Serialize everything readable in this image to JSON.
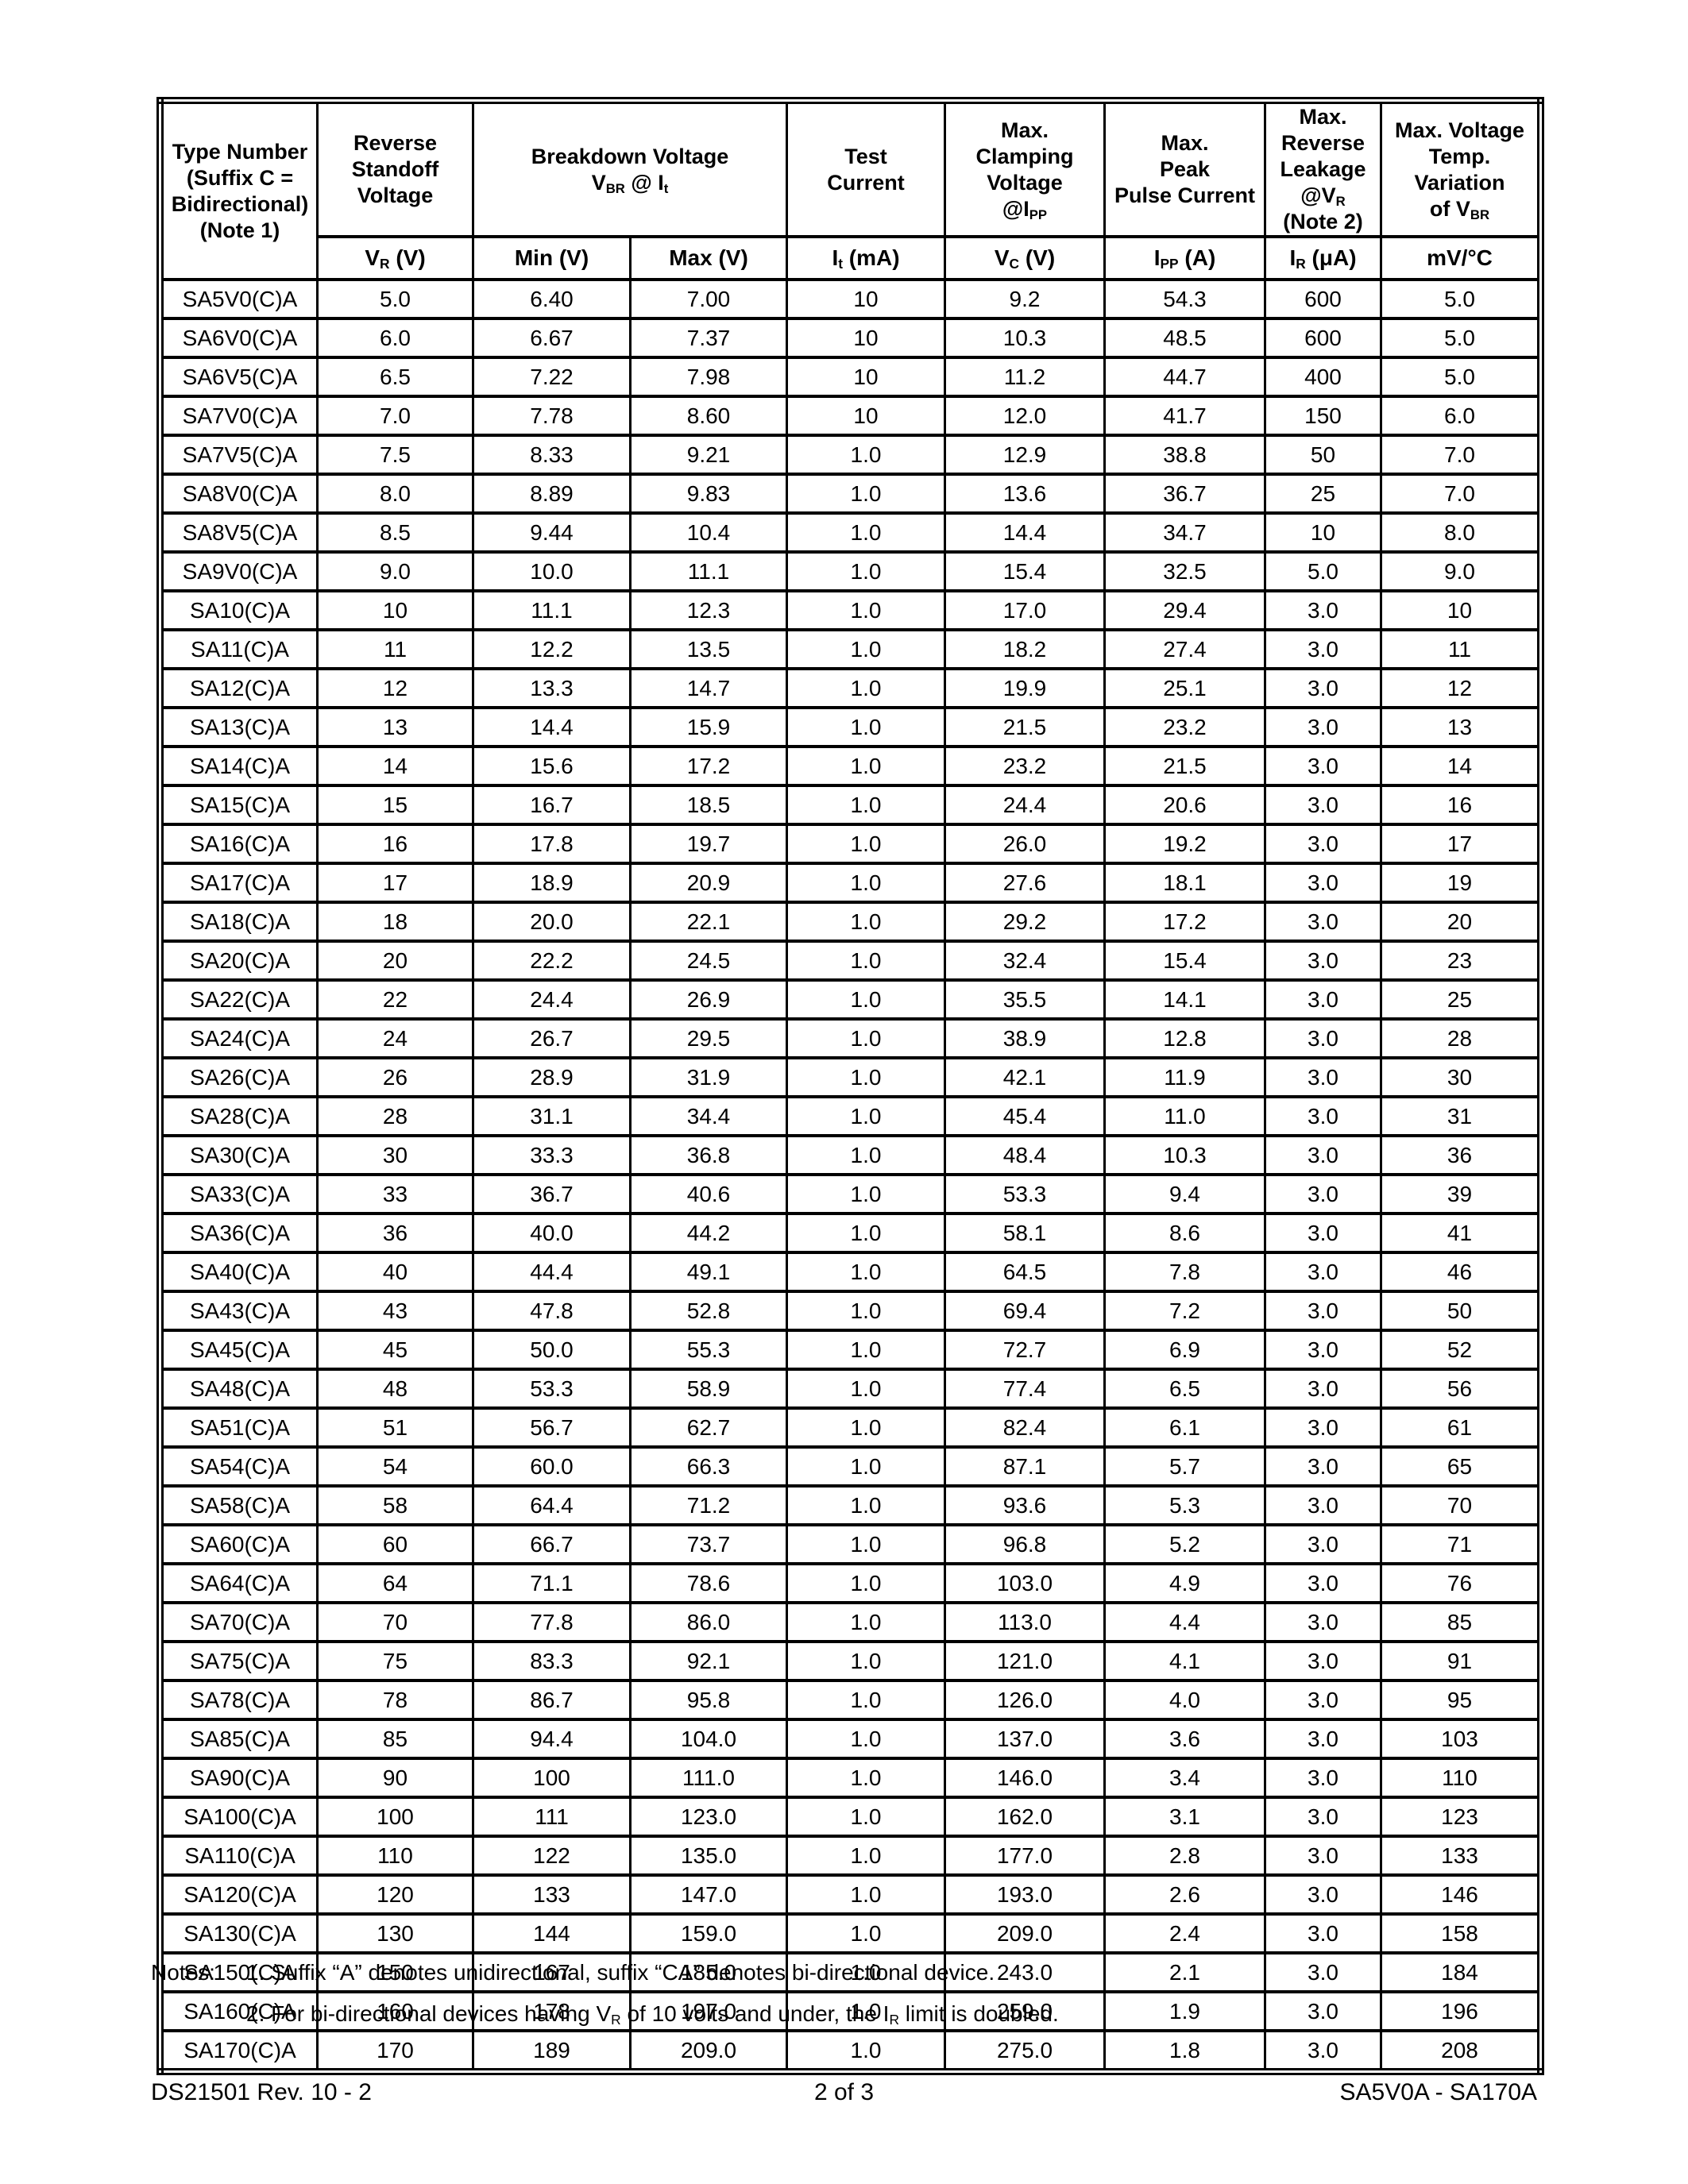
{
  "table": {
    "header": {
      "type": [
        {
          "t": "Type Number"
        },
        {
          "br": 1
        },
        {
          "t": "(Suffix C ="
        },
        {
          "br": 1
        },
        {
          "t": "Bidirectional)"
        },
        {
          "br": 1
        },
        {
          "t": "(Note 1)"
        }
      ],
      "standoff": [
        {
          "t": "Reverse"
        },
        {
          "br": 1
        },
        {
          "t": "Standoff"
        },
        {
          "br": 1
        },
        {
          "t": "Voltage"
        }
      ],
      "breakdown": [
        {
          "t": "Breakdown Voltage"
        },
        {
          "br": 1
        },
        {
          "t": "V"
        },
        {
          "s": "BR"
        },
        {
          "t": " @ I"
        },
        {
          "s": "t"
        }
      ],
      "test": [
        {
          "t": "Test"
        },
        {
          "br": 1
        },
        {
          "t": "Current"
        }
      ],
      "clamping": [
        {
          "t": "Max."
        },
        {
          "br": 1
        },
        {
          "t": "Clamping"
        },
        {
          "br": 1
        },
        {
          "t": "Voltage"
        },
        {
          "br": 1
        },
        {
          "t": "@I"
        },
        {
          "s": "PP"
        }
      ],
      "peak": [
        {
          "t": "Max."
        },
        {
          "br": 1
        },
        {
          "t": "Peak"
        },
        {
          "br": 1
        },
        {
          "t": "Pulse Current"
        }
      ],
      "leakage": [
        {
          "t": "Max."
        },
        {
          "br": 1
        },
        {
          "t": "Reverse"
        },
        {
          "br": 1
        },
        {
          "t": "Leakage"
        },
        {
          "br": 1
        },
        {
          "t": "@V"
        },
        {
          "s": "R"
        },
        {
          "br": 1
        },
        {
          "t": "(Note 2)"
        }
      ],
      "tempvar": [
        {
          "t": "Max. Voltage"
        },
        {
          "br": 1
        },
        {
          "t": "Temp."
        },
        {
          "br": 1
        },
        {
          "t": "Variation"
        },
        {
          "br": 1
        },
        {
          "t": "of V"
        },
        {
          "s": "BR"
        }
      ]
    },
    "subheader": {
      "vr": [
        {
          "t": "V"
        },
        {
          "s": "R"
        },
        {
          "t": " (V)"
        }
      ],
      "min": [
        {
          "t": "Min (V)"
        }
      ],
      "max": [
        {
          "t": "Max (V)"
        }
      ],
      "it": [
        {
          "t": "I"
        },
        {
          "s": "t"
        },
        {
          "t": " (mA)"
        }
      ],
      "vc": [
        {
          "t": "V"
        },
        {
          "s": "C"
        },
        {
          "t": " (V)"
        }
      ],
      "ipp": [
        {
          "t": "I"
        },
        {
          "s": "PP"
        },
        {
          "t": " (A)"
        }
      ],
      "ir": [
        {
          "t": "I"
        },
        {
          "s": "R"
        },
        {
          "t": " (μA)"
        }
      ],
      "mv": [
        {
          "t": "mV/°C"
        }
      ]
    },
    "rows": [
      [
        "SA5V0(C)A",
        "5.0",
        "6.40",
        "7.00",
        "10",
        "9.2",
        "54.3",
        "600",
        "5.0"
      ],
      [
        "SA6V0(C)A",
        "6.0",
        "6.67",
        "7.37",
        "10",
        "10.3",
        "48.5",
        "600",
        "5.0"
      ],
      [
        "SA6V5(C)A",
        "6.5",
        "7.22",
        "7.98",
        "10",
        "11.2",
        "44.7",
        "400",
        "5.0"
      ],
      [
        "SA7V0(C)A",
        "7.0",
        "7.78",
        "8.60",
        "10",
        "12.0",
        "41.7",
        "150",
        "6.0"
      ],
      [
        "SA7V5(C)A",
        "7.5",
        "8.33",
        "9.21",
        "1.0",
        "12.9",
        "38.8",
        "50",
        "7.0"
      ],
      [
        "SA8V0(C)A",
        "8.0",
        "8.89",
        "9.83",
        "1.0",
        "13.6",
        "36.7",
        "25",
        "7.0"
      ],
      [
        "SA8V5(C)A",
        "8.5",
        "9.44",
        "10.4",
        "1.0",
        "14.4",
        "34.7",
        "10",
        "8.0"
      ],
      [
        "SA9V0(C)A",
        "9.0",
        "10.0",
        "11.1",
        "1.0",
        "15.4",
        "32.5",
        "5.0",
        "9.0"
      ],
      [
        "SA10(C)A",
        "10",
        "11.1",
        "12.3",
        "1.0",
        "17.0",
        "29.4",
        "3.0",
        "10"
      ],
      [
        "SA11(C)A",
        "11",
        "12.2",
        "13.5",
        "1.0",
        "18.2",
        "27.4",
        "3.0",
        "11"
      ],
      [
        "SA12(C)A",
        "12",
        "13.3",
        "14.7",
        "1.0",
        "19.9",
        "25.1",
        "3.0",
        "12"
      ],
      [
        "SA13(C)A",
        "13",
        "14.4",
        "15.9",
        "1.0",
        "21.5",
        "23.2",
        "3.0",
        "13"
      ],
      [
        "SA14(C)A",
        "14",
        "15.6",
        "17.2",
        "1.0",
        "23.2",
        "21.5",
        "3.0",
        "14"
      ],
      [
        "SA15(C)A",
        "15",
        "16.7",
        "18.5",
        "1.0",
        "24.4",
        "20.6",
        "3.0",
        "16"
      ],
      [
        "SA16(C)A",
        "16",
        "17.8",
        "19.7",
        "1.0",
        "26.0",
        "19.2",
        "3.0",
        "17"
      ],
      [
        "SA17(C)A",
        "17",
        "18.9",
        "20.9",
        "1.0",
        "27.6",
        "18.1",
        "3.0",
        "19"
      ],
      [
        "SA18(C)A",
        "18",
        "20.0",
        "22.1",
        "1.0",
        "29.2",
        "17.2",
        "3.0",
        "20"
      ],
      [
        "SA20(C)A",
        "20",
        "22.2",
        "24.5",
        "1.0",
        "32.4",
        "15.4",
        "3.0",
        "23"
      ],
      [
        "SA22(C)A",
        "22",
        "24.4",
        "26.9",
        "1.0",
        "35.5",
        "14.1",
        "3.0",
        "25"
      ],
      [
        "SA24(C)A",
        "24",
        "26.7",
        "29.5",
        "1.0",
        "38.9",
        "12.8",
        "3.0",
        "28"
      ],
      [
        "SA26(C)A",
        "26",
        "28.9",
        "31.9",
        "1.0",
        "42.1",
        "11.9",
        "3.0",
        "30"
      ],
      [
        "SA28(C)A",
        "28",
        "31.1",
        "34.4",
        "1.0",
        "45.4",
        "11.0",
        "3.0",
        "31"
      ],
      [
        "SA30(C)A",
        "30",
        "33.3",
        "36.8",
        "1.0",
        "48.4",
        "10.3",
        "3.0",
        "36"
      ],
      [
        "SA33(C)A",
        "33",
        "36.7",
        "40.6",
        "1.0",
        "53.3",
        "9.4",
        "3.0",
        "39"
      ],
      [
        "SA36(C)A",
        "36",
        "40.0",
        "44.2",
        "1.0",
        "58.1",
        "8.6",
        "3.0",
        "41"
      ],
      [
        "SA40(C)A",
        "40",
        "44.4",
        "49.1",
        "1.0",
        "64.5",
        "7.8",
        "3.0",
        "46"
      ],
      [
        "SA43(C)A",
        "43",
        "47.8",
        "52.8",
        "1.0",
        "69.4",
        "7.2",
        "3.0",
        "50"
      ],
      [
        "SA45(C)A",
        "45",
        "50.0",
        "55.3",
        "1.0",
        "72.7",
        "6.9",
        "3.0",
        "52"
      ],
      [
        "SA48(C)A",
        "48",
        "53.3",
        "58.9",
        "1.0",
        "77.4",
        "6.5",
        "3.0",
        "56"
      ],
      [
        "SA51(C)A",
        "51",
        "56.7",
        "62.7",
        "1.0",
        "82.4",
        "6.1",
        "3.0",
        "61"
      ],
      [
        "SA54(C)A",
        "54",
        "60.0",
        "66.3",
        "1.0",
        "87.1",
        "5.7",
        "3.0",
        "65"
      ],
      [
        "SA58(C)A",
        "58",
        "64.4",
        "71.2",
        "1.0",
        "93.6",
        "5.3",
        "3.0",
        "70"
      ],
      [
        "SA60(C)A",
        "60",
        "66.7",
        "73.7",
        "1.0",
        "96.8",
        "5.2",
        "3.0",
        "71"
      ],
      [
        "SA64(C)A",
        "64",
        "71.1",
        "78.6",
        "1.0",
        "103.0",
        "4.9",
        "3.0",
        "76"
      ],
      [
        "SA70(C)A",
        "70",
        "77.8",
        "86.0",
        "1.0",
        "113.0",
        "4.4",
        "3.0",
        "85"
      ],
      [
        "SA75(C)A",
        "75",
        "83.3",
        "92.1",
        "1.0",
        "121.0",
        "4.1",
        "3.0",
        "91"
      ],
      [
        "SA78(C)A",
        "78",
        "86.7",
        "95.8",
        "1.0",
        "126.0",
        "4.0",
        "3.0",
        "95"
      ],
      [
        "SA85(C)A",
        "85",
        "94.4",
        "104.0",
        "1.0",
        "137.0",
        "3.6",
        "3.0",
        "103"
      ],
      [
        "SA90(C)A",
        "90",
        "100",
        "111.0",
        "1.0",
        "146.0",
        "3.4",
        "3.0",
        "110"
      ],
      [
        "SA100(C)A",
        "100",
        "111",
        "123.0",
        "1.0",
        "162.0",
        "3.1",
        "3.0",
        "123"
      ],
      [
        "SA110(C)A",
        "110",
        "122",
        "135.0",
        "1.0",
        "177.0",
        "2.8",
        "3.0",
        "133"
      ],
      [
        "SA120(C)A",
        "120",
        "133",
        "147.0",
        "1.0",
        "193.0",
        "2.6",
        "3.0",
        "146"
      ],
      [
        "SA130(C)A",
        "130",
        "144",
        "159.0",
        "1.0",
        "209.0",
        "2.4",
        "3.0",
        "158"
      ],
      [
        "SA150(C)A",
        "150",
        "167",
        "185.0",
        "1.0",
        "243.0",
        "2.1",
        "3.0",
        "184"
      ],
      [
        "SA160(C)A",
        "160",
        "178",
        "197.0",
        "1.0",
        "259.0",
        "1.9",
        "3.0",
        "196"
      ],
      [
        "SA170(C)A",
        "170",
        "189",
        "209.0",
        "1.0",
        "275.0",
        "1.8",
        "3.0",
        "208"
      ]
    ]
  },
  "notes": {
    "label": "Notes:",
    "items": [
      [
        {
          "t": "1. Suffix “A” denotes unidirectional, suffix “CA” denotes bi-directional device."
        }
      ],
      [
        {
          "t": "2. For bi-directional devices having V"
        },
        {
          "s": "R"
        },
        {
          "t": " of 10 volts and under, the I"
        },
        {
          "s": "R"
        },
        {
          "t": " limit is doubled."
        }
      ]
    ]
  },
  "footer": {
    "left": "DS21501 Rev. 10 - 2",
    "center": "2 of 3",
    "right": "SA5V0A - SA170A"
  }
}
